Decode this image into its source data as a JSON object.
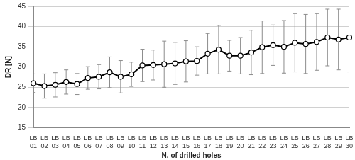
{
  "chart_data": {
    "type": "line",
    "x_label": "N. of drilled holes",
    "y_label": "DR [N]",
    "categories": [
      "LB 01",
      "LB 02",
      "LB 03",
      "LB 04",
      "LB 05",
      "LB 06",
      "LB 07",
      "LB 08",
      "LB 09",
      "LB 10",
      "LB 11",
      "LB 12",
      "LB 13",
      "LB 14",
      "LB 15",
      "LB 16",
      "LB 17",
      "LB 18",
      "LB 19",
      "LB 20",
      "LB 21",
      "LB 22",
      "LB 23",
      "LB 24",
      "LB 25",
      "LB 26",
      "LB 27",
      "LB 28",
      "LB 29",
      "LB 30"
    ],
    "values": [
      26.0,
      25.3,
      25.6,
      26.3,
      25.8,
      27.3,
      27.6,
      28.7,
      27.6,
      28.2,
      30.4,
      30.5,
      30.7,
      30.9,
      31.4,
      31.5,
      33.3,
      34.3,
      32.8,
      32.8,
      33.6,
      34.9,
      35.4,
      35.0,
      36.0,
      35.7,
      36.2,
      37.3,
      36.8,
      37.3
    ],
    "errors": [
      2.3,
      3.0,
      3.0,
      3.0,
      2.6,
      2.8,
      3.0,
      3.8,
      4.0,
      3.0,
      4.0,
      3.7,
      5.7,
      5.2,
      5.1,
      3.5,
      5.0,
      6.0,
      3.8,
      4.5,
      5.5,
      6.5,
      5.0,
      6.5,
      7.2,
      7.3,
      7.0,
      7.0,
      7.5,
      8.5
    ],
    "color": "#000000",
    "marker": "circle",
    "line_style": "solid",
    "ylim": [
      15,
      45
    ],
    "yticks": [
      15,
      20,
      25,
      30,
      35,
      40,
      45
    ],
    "grid": true
  }
}
